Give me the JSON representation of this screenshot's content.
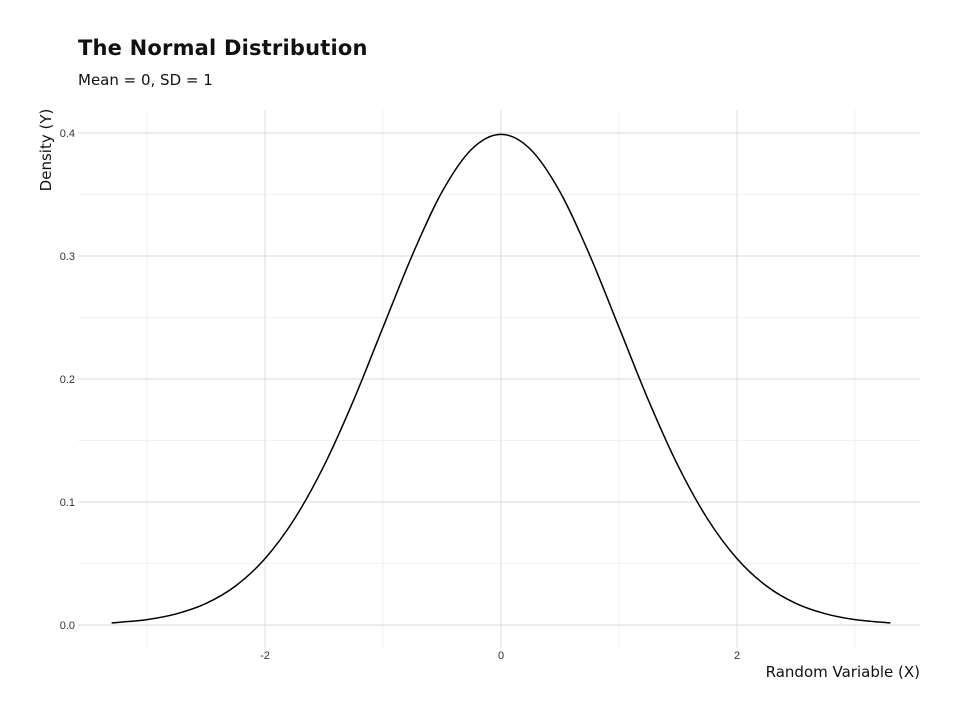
{
  "chart_data": {
    "type": "line",
    "title": "The Normal Distribution",
    "subtitle": "Mean = 0, SD = 1",
    "xlabel": "Random Variable (X)",
    "ylabel": "Density (Y)",
    "xlim": [
      -3.6,
      3.6
    ],
    "ylim": [
      0,
      0.4
    ],
    "x_ticks": [
      -2,
      0,
      2
    ],
    "x_tick_labels": [
      "-2",
      "0",
      "2"
    ],
    "y_ticks": [
      0,
      0.1,
      0.2,
      0.3,
      0.4
    ],
    "y_tick_labels": [
      "0.0",
      "0.1",
      "0.2",
      "0.3",
      "0.4"
    ],
    "grid": true,
    "line_color": "#000000",
    "series": [
      {
        "x": [
          -3.3,
          -3.0,
          -2.75,
          -2.5,
          -2.25,
          -2.0,
          -1.75,
          -1.5,
          -1.25,
          -1.0,
          -0.75,
          -0.5,
          -0.25,
          0.0,
          0.25,
          0.5,
          0.75,
          1.0,
          1.25,
          1.5,
          1.75,
          2.0,
          2.25,
          2.5,
          2.75,
          3.0,
          3.3
        ],
        "values": [
          0.0017,
          0.0044,
          0.0091,
          0.0175,
          0.0317,
          0.054,
          0.0863,
          0.1295,
          0.1826,
          0.242,
          0.3011,
          0.3521,
          0.3867,
          0.3989,
          0.3867,
          0.3521,
          0.3011,
          0.242,
          0.1826,
          0.1295,
          0.0863,
          0.054,
          0.0317,
          0.0175,
          0.0091,
          0.0044,
          0.0017
        ]
      }
    ]
  }
}
